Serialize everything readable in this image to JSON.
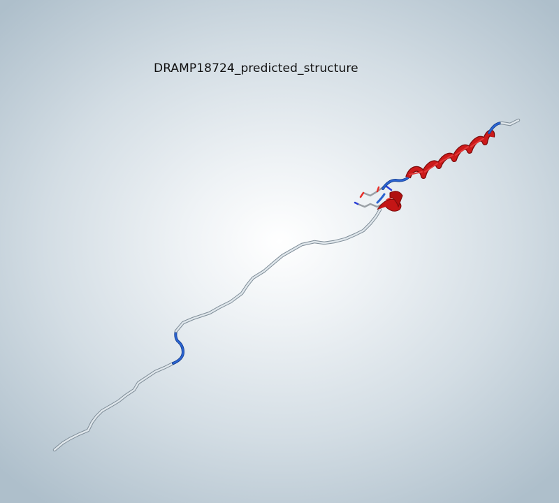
{
  "viewer": {
    "title": "DRAMP18724_predicted_structure"
  },
  "colors": {
    "coil": "#c9d3da",
    "coil_dark": "#8a98a3",
    "turn": "#1f4fb5",
    "helix": "#c41515",
    "helix_dark": "#7a0a0a",
    "atom_oxygen": "#e8302a",
    "atom_nitrogen": "#2a3fd6",
    "atom_carbon": "#9aa0a6"
  }
}
